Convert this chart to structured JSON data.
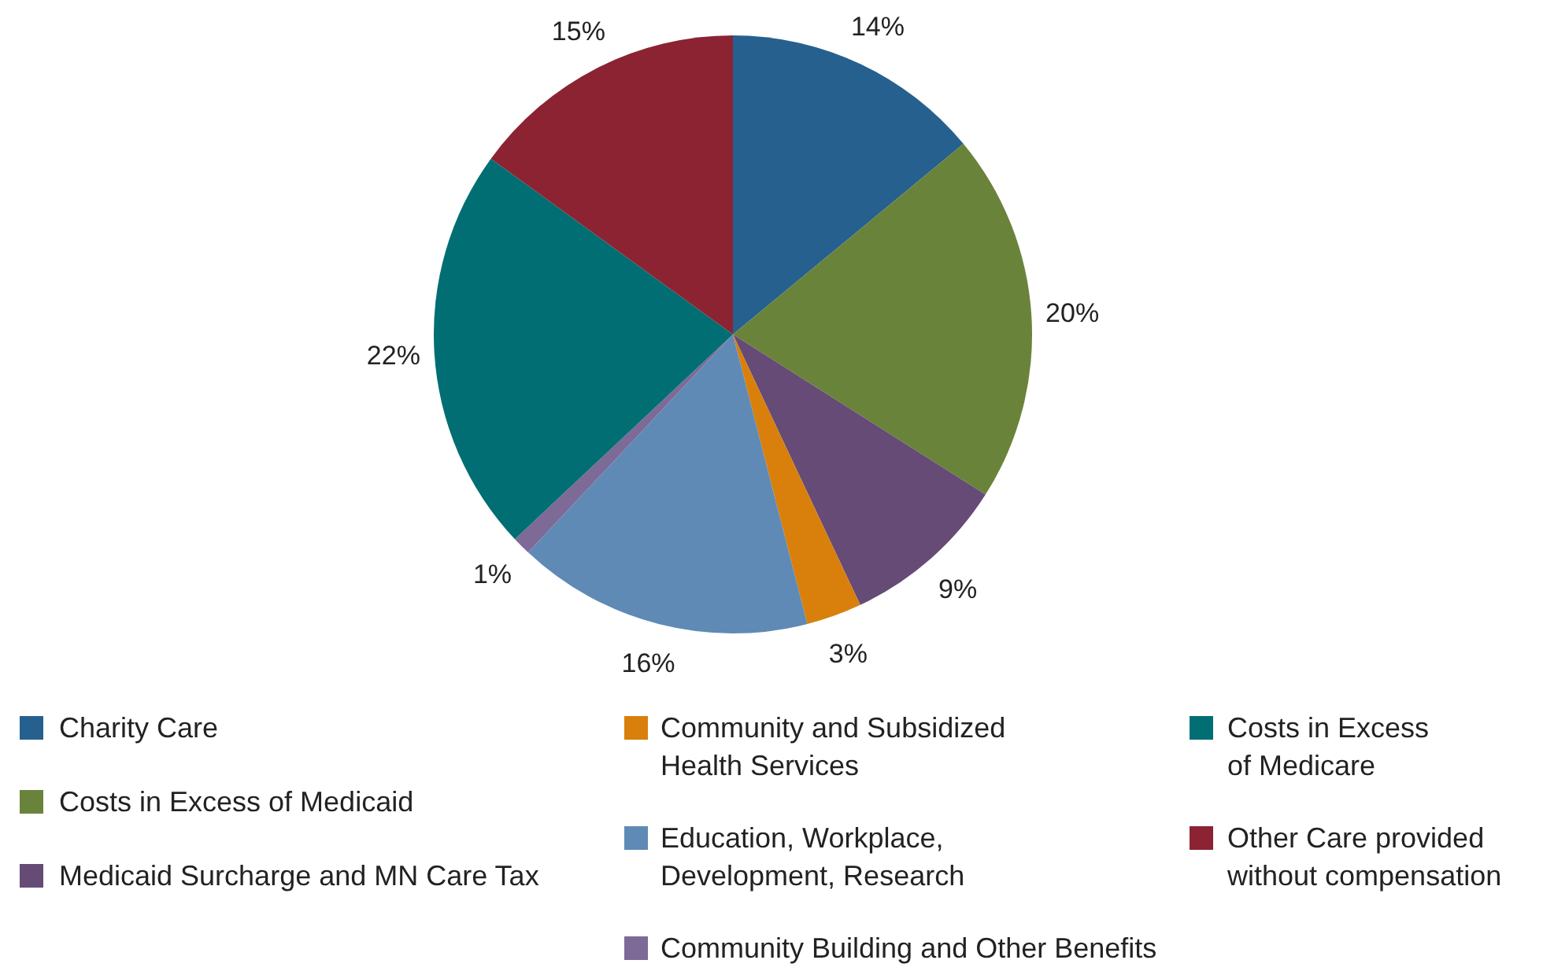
{
  "chart_data": {
    "type": "pie",
    "categories": [
      "Charity Care",
      "Costs in Excess of Medicaid",
      "Medicaid Surcharge and MN Care Tax",
      "Community and Subsidized Health Services",
      "Education, Workplace, Development, Research",
      "Community Building and Other Benefits",
      "Costs in Excess of Medicare",
      "Other Care provided without compensation"
    ],
    "values": [
      14,
      20,
      9,
      3,
      16,
      1,
      22,
      15
    ],
    "value_labels": [
      "14%",
      "20%",
      "9%",
      "3%",
      "16%",
      "1%",
      "22%",
      "15%"
    ],
    "colors": [
      "#26608f",
      "#6a833a",
      "#654b76",
      "#d97f0b",
      "#5f8ab5",
      "#7d6a96",
      "#006e73",
      "#8b2332"
    ],
    "legend": "bottom"
  }
}
